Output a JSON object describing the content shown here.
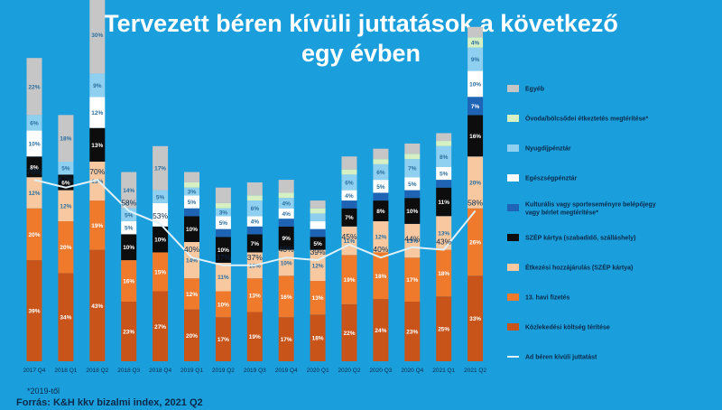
{
  "title_lines": [
    "Tervezett béren kívüli juttatások a következő",
    "egy évben"
  ],
  "footnote": "*2019-től",
  "source": "Forrás: K&H kkv bizalmi index, 2021 Q2",
  "colors": {
    "background": "#1a9fdc",
    "label_dark": "#0b2a4a"
  },
  "chart_data": {
    "type": "bar",
    "stacked": true,
    "categories": [
      "2017 Q4",
      "2018 Q1",
      "2018 Q2",
      "2018 Q3",
      "2018 Q4",
      "2019 Q1",
      "2019 Q2",
      "2019 Q3",
      "2019 Q4",
      "2020 Q1",
      "2020 Q2",
      "2020 Q3",
      "2020 Q4",
      "2021 Q1",
      "2021 Q2"
    ],
    "series": [
      {
        "name": "Közlekedési költség térítése",
        "color": "#c8541a",
        "values": [
          39,
          34,
          43,
          23,
          27,
          20,
          17,
          19,
          17,
          18,
          22,
          24,
          23,
          25,
          33
        ],
        "labels": [
          "39%",
          "34%",
          "43%",
          "23%",
          "27%",
          "20%",
          "17%",
          "19%",
          "17%",
          "18%",
          "22%",
          "24%",
          "23%",
          "25%",
          "33%"
        ]
      },
      {
        "name": "13. havi fizetés",
        "color": "#f07a2c",
        "values": [
          20,
          20,
          19,
          16,
          15,
          12,
          10,
          13,
          16,
          13,
          19,
          18,
          17,
          18,
          26
        ],
        "labels": [
          "20%",
          "20%",
          "19%",
          "16%",
          "15%",
          "12%",
          "10%",
          "13%",
          "16%",
          "13%",
          "19%",
          "18%",
          "17%",
          "18%",
          "26%"
        ]
      },
      {
        "name": "Étkezési hozzájárulás (SZÉP kártya)",
        "color": "#f8c9a0",
        "values": [
          12,
          12,
          15,
          0,
          0,
          14,
          11,
          10,
          10,
          12,
          11,
          12,
          13,
          13,
          20
        ],
        "labels": [
          "12%",
          "12%",
          "15%",
          "",
          "",
          "14%",
          "11%",
          "10%",
          "10%",
          "12%",
          "11%",
          "12%",
          "13%",
          "13%",
          "20%"
        ]
      },
      {
        "name": "SZÉP kártya (szabadidő, szálláshely)",
        "color": "#0d0d0d",
        "values": [
          8,
          6,
          13,
          10,
          10,
          10,
          10,
          7,
          9,
          5,
          7,
          8,
          10,
          11,
          16
        ],
        "labels": [
          "8%",
          "6%",
          "13%",
          "10%",
          "10%",
          "10%",
          "10%",
          "7%",
          "9%",
          "5%",
          "7%",
          "8%",
          "10%",
          "11%",
          "16%"
        ]
      },
      {
        "name": "Kulturális vagy sporteseményre belépőjegy vagy bérlet megtérítése*",
        "color": "#1e63b4",
        "values": [
          0,
          0,
          0,
          0,
          0,
          3,
          3,
          3,
          3,
          3,
          3,
          3,
          3,
          3,
          7
        ],
        "labels": [
          "",
          "",
          "",
          "",
          "",
          "",
          "",
          "",
          "",
          "",
          "",
          "",
          "",
          "",
          "7%"
        ]
      },
      {
        "name": "Egészségpénztár",
        "color": "#ffffff",
        "values": [
          10,
          0,
          12,
          5,
          9,
          5,
          5,
          4,
          4,
          3,
          4,
          5,
          5,
          5,
          10
        ],
        "labels": [
          "10%",
          "",
          "12%",
          "5%",
          "",
          "5%",
          "5%",
          "4%",
          "4%",
          "",
          "4%",
          "5%",
          "5%",
          "5%",
          "10%"
        ]
      },
      {
        "name": "Nyugdíjpénztár",
        "color": "#8fd0f0",
        "values": [
          6,
          5,
          9,
          5,
          5,
          3,
          3,
          6,
          4,
          3,
          6,
          6,
          7,
          8,
          9
        ],
        "labels": [
          "6%",
          "5%",
          "9%",
          "5%",
          "5%",
          "3%",
          "3%",
          "6%",
          "4%",
          "",
          "6%",
          "6%",
          "7%",
          "8%",
          "9%"
        ]
      },
      {
        "name": "Óvoda/bölcsődei étkeztetés megtérítése*",
        "color": "#d6f0c4",
        "values": [
          0,
          0,
          0,
          0,
          0,
          2,
          2,
          2,
          2,
          2,
          2,
          2,
          2,
          2,
          4
        ],
        "labels": [
          "",
          "",
          "",
          "",
          "",
          "",
          "",
          "",
          "",
          "",
          "",
          "",
          "",
          "",
          "4%"
        ]
      },
      {
        "name": "Egyéb",
        "color": "#c6c6c6",
        "values": [
          22,
          18,
          30,
          14,
          17,
          4,
          6,
          5,
          5,
          3,
          5,
          4,
          4,
          3,
          4
        ],
        "labels": [
          "22%",
          "18%",
          "30%",
          "14%",
          "17%",
          "",
          "",
          "",
          "",
          "",
          "",
          "",
          "",
          "",
          ""
        ]
      }
    ],
    "line": {
      "name": "Ad béren kívüli juttatást",
      "color": "#dff1fb",
      "values": [
        70,
        67,
        70,
        58,
        53,
        40,
        37,
        37,
        40,
        39,
        45,
        40,
        44,
        43,
        58
      ],
      "labels": [
        "70%",
        "67%",
        "70%",
        "58%",
        "53%",
        "40%",
        "37%",
        "37%",
        "40%",
        "39%",
        "45%",
        "40%",
        "44%",
        "43%",
        "58%"
      ]
    },
    "legend_order": [
      "Egyéb",
      "Óvoda/bölcsődei étkeztetés megtérítése*",
      "Nyugdíjpénztár",
      "Egészségpénztár",
      "Kulturális vagy sporteseményre belépőjegy vagy bérlet megtérítése*",
      "SZÉP kártya (szabadidő, szálláshely)",
      "Étkezési hozzájárulás (SZÉP kártya)",
      "13. havi fizetés",
      "Közlekedési költség térítése",
      "Ad béren kívüli juttatást"
    ],
    "legend_position": "right",
    "grid": false
  }
}
